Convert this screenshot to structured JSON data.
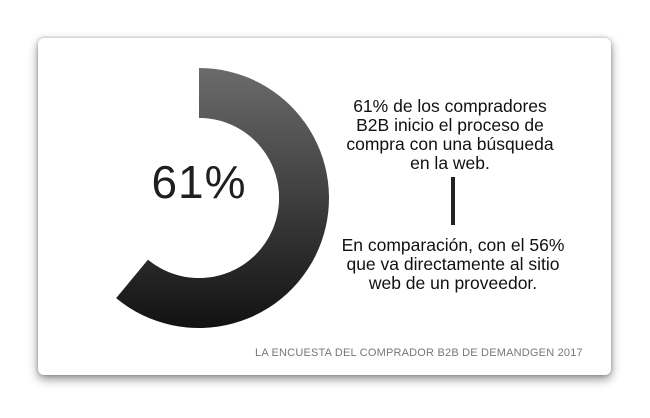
{
  "chart_data": {
    "type": "pie",
    "style": "donut",
    "values": [
      61
    ],
    "max": 100,
    "center_label": "61%",
    "colors": {
      "arc_start": "#6b6b6b",
      "arc_end": "#121212",
      "hole": "#ffffff"
    }
  },
  "text": {
    "primary_lines": [
      "61% de los compradores",
      "B2B inicio el proceso de",
      "compra con una búsqueda",
      "en la web."
    ],
    "secondary_lines": [
      "En comparación, con el 56%",
      "que va directamente al sitio",
      "web de un proveedor."
    ]
  },
  "footer": "LA ENCUESTA DEL COMPRADOR B2B DE DEMANDGEN 2017"
}
